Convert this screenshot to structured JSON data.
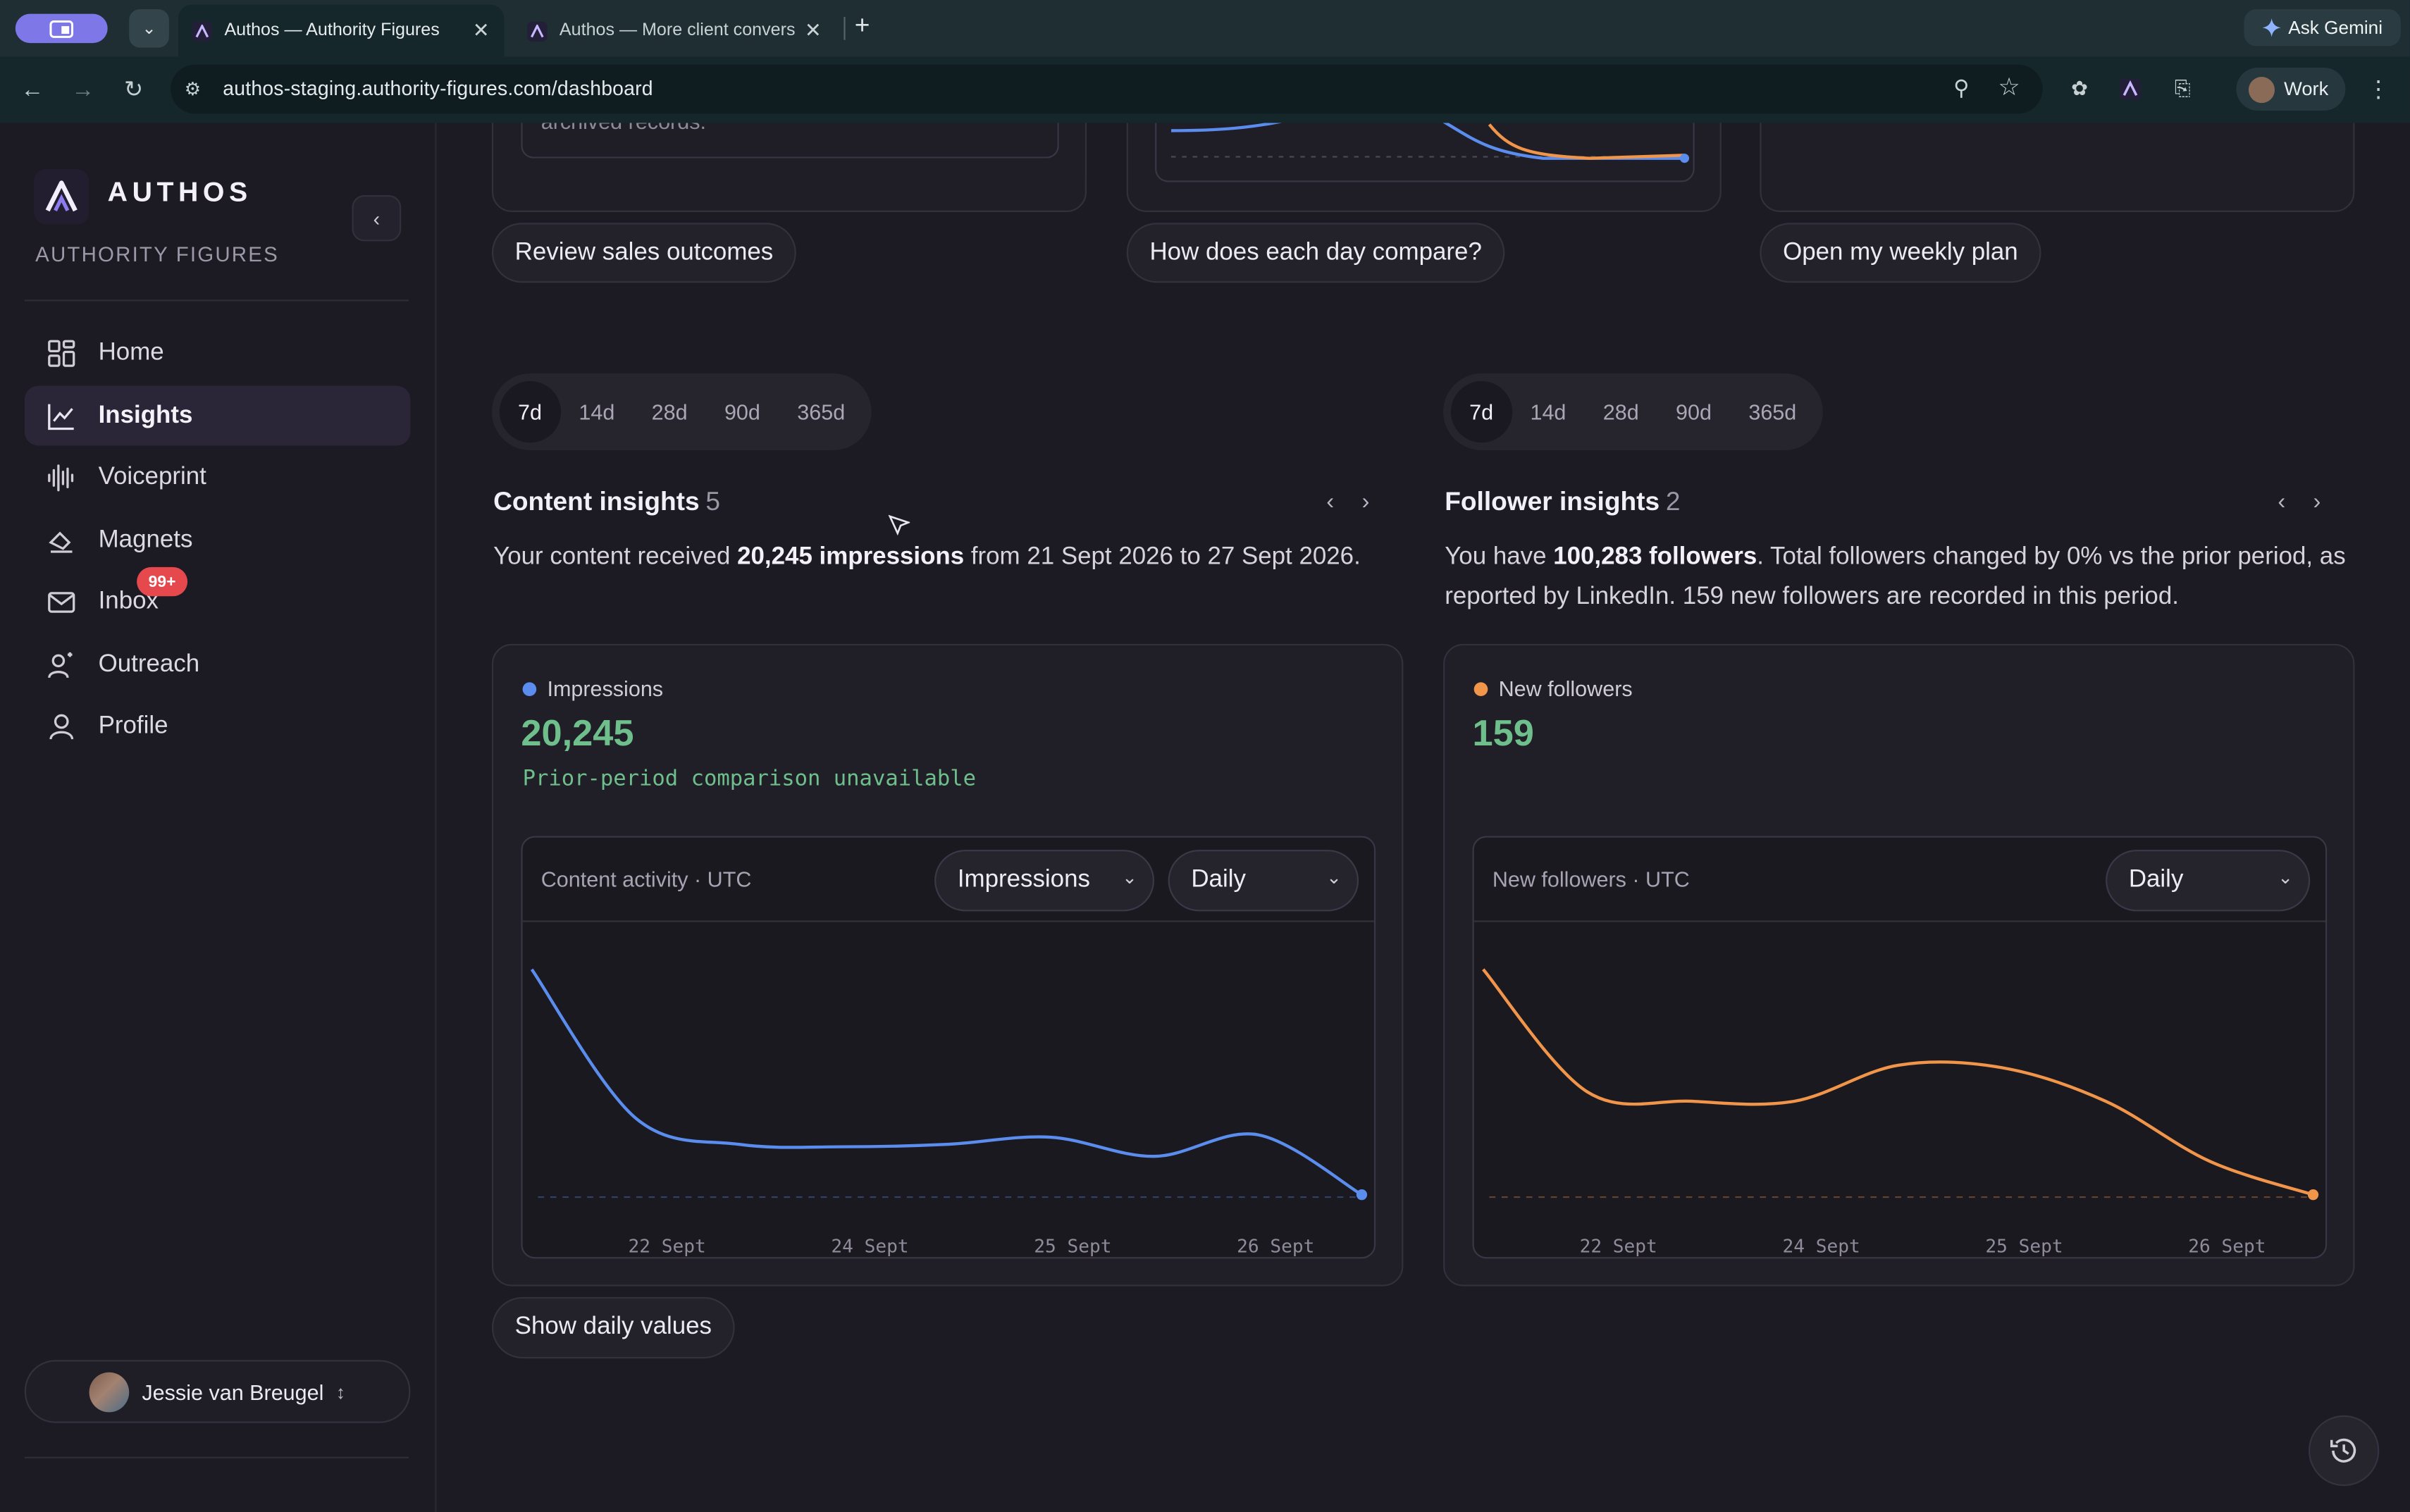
{
  "browser": {
    "tabs": [
      {
        "title": "Authos — Authority Figures",
        "active": true
      },
      {
        "title": "Authos — More client convers",
        "active": false
      }
    ],
    "url": "authos-staging.authority-figures.com/dashboard",
    "gemini_label": "Ask Gemini",
    "profile_label": "Work"
  },
  "sidebar": {
    "brand_name": "AUTHOS",
    "brand_sub": "AUTHORITY FIGURES",
    "items": [
      {
        "label": "Home",
        "icon": "grid-icon"
      },
      {
        "label": "Insights",
        "icon": "chart-line-icon",
        "active": true
      },
      {
        "label": "Voiceprint",
        "icon": "waveform-icon"
      },
      {
        "label": "Magnets",
        "icon": "magnet-icon"
      },
      {
        "label": "Inbox",
        "icon": "mail-icon",
        "badge": "99+"
      },
      {
        "label": "Outreach",
        "icon": "outreach-icon"
      },
      {
        "label": "Profile",
        "icon": "person-icon"
      }
    ],
    "user_name": "Jessie van Breugel"
  },
  "top": {
    "fragment_text": "archived records.",
    "chips": [
      "Review sales outcomes",
      "How does each day compare?",
      "Open my weekly plan"
    ]
  },
  "ranges": [
    "7d",
    "14d",
    "28d",
    "90d",
    "365d"
  ],
  "content": {
    "title": "Content insights",
    "count": "5",
    "body_pre": "Your content received ",
    "body_bold": "20,245 impressions",
    "body_post": " from 21 Sept 2026 to 27 Sept 2026.",
    "metric_label": "Impressions",
    "metric_value": "20,245",
    "metric_note": "Prior-period comparison unavailable",
    "chart_title": "Content activity · UTC",
    "metric_select": "Impressions",
    "period_select": "Daily",
    "show_values": "Show daily values"
  },
  "followers": {
    "title": "Follower insights",
    "count": "2",
    "body_pre": "You have ",
    "body_bold": "100,283 followers",
    "body_post": ". Total followers changed by 0% vs the prior period, as reported by LinkedIn. 159 new followers are recorded in this period.",
    "metric_label": "New followers",
    "metric_value": "159",
    "chart_title": "New followers · UTC",
    "period_select": "Daily"
  },
  "colors": {
    "impressions": "#5b8def",
    "followers": "#f0954a",
    "positive": "#6fbf8c",
    "badge": "#e5484d"
  },
  "chart_data": [
    {
      "type": "line",
      "title": "Content activity · UTC",
      "series": [
        {
          "name": "Impressions",
          "color": "#5b8def"
        }
      ],
      "x_tick_labels": [
        "22 Sept",
        "24 Sept",
        "25 Sept",
        "26 Sept"
      ],
      "shape": [
        0.95,
        0.33,
        0.22,
        0.21,
        0.22,
        0.25,
        0.17,
        0.26,
        0.01
      ],
      "note": "no y-axis values shown"
    },
    {
      "type": "line",
      "title": "New followers · UTC",
      "series": [
        {
          "name": "New followers",
          "color": "#f0954a"
        }
      ],
      "x_tick_labels": [
        "22 Sept",
        "24 Sept",
        "25 Sept",
        "26 Sept"
      ],
      "shape": [
        0.95,
        0.44,
        0.4,
        0.4,
        0.55,
        0.54,
        0.4,
        0.15,
        0.01
      ],
      "note": "no y-axis values shown"
    }
  ]
}
